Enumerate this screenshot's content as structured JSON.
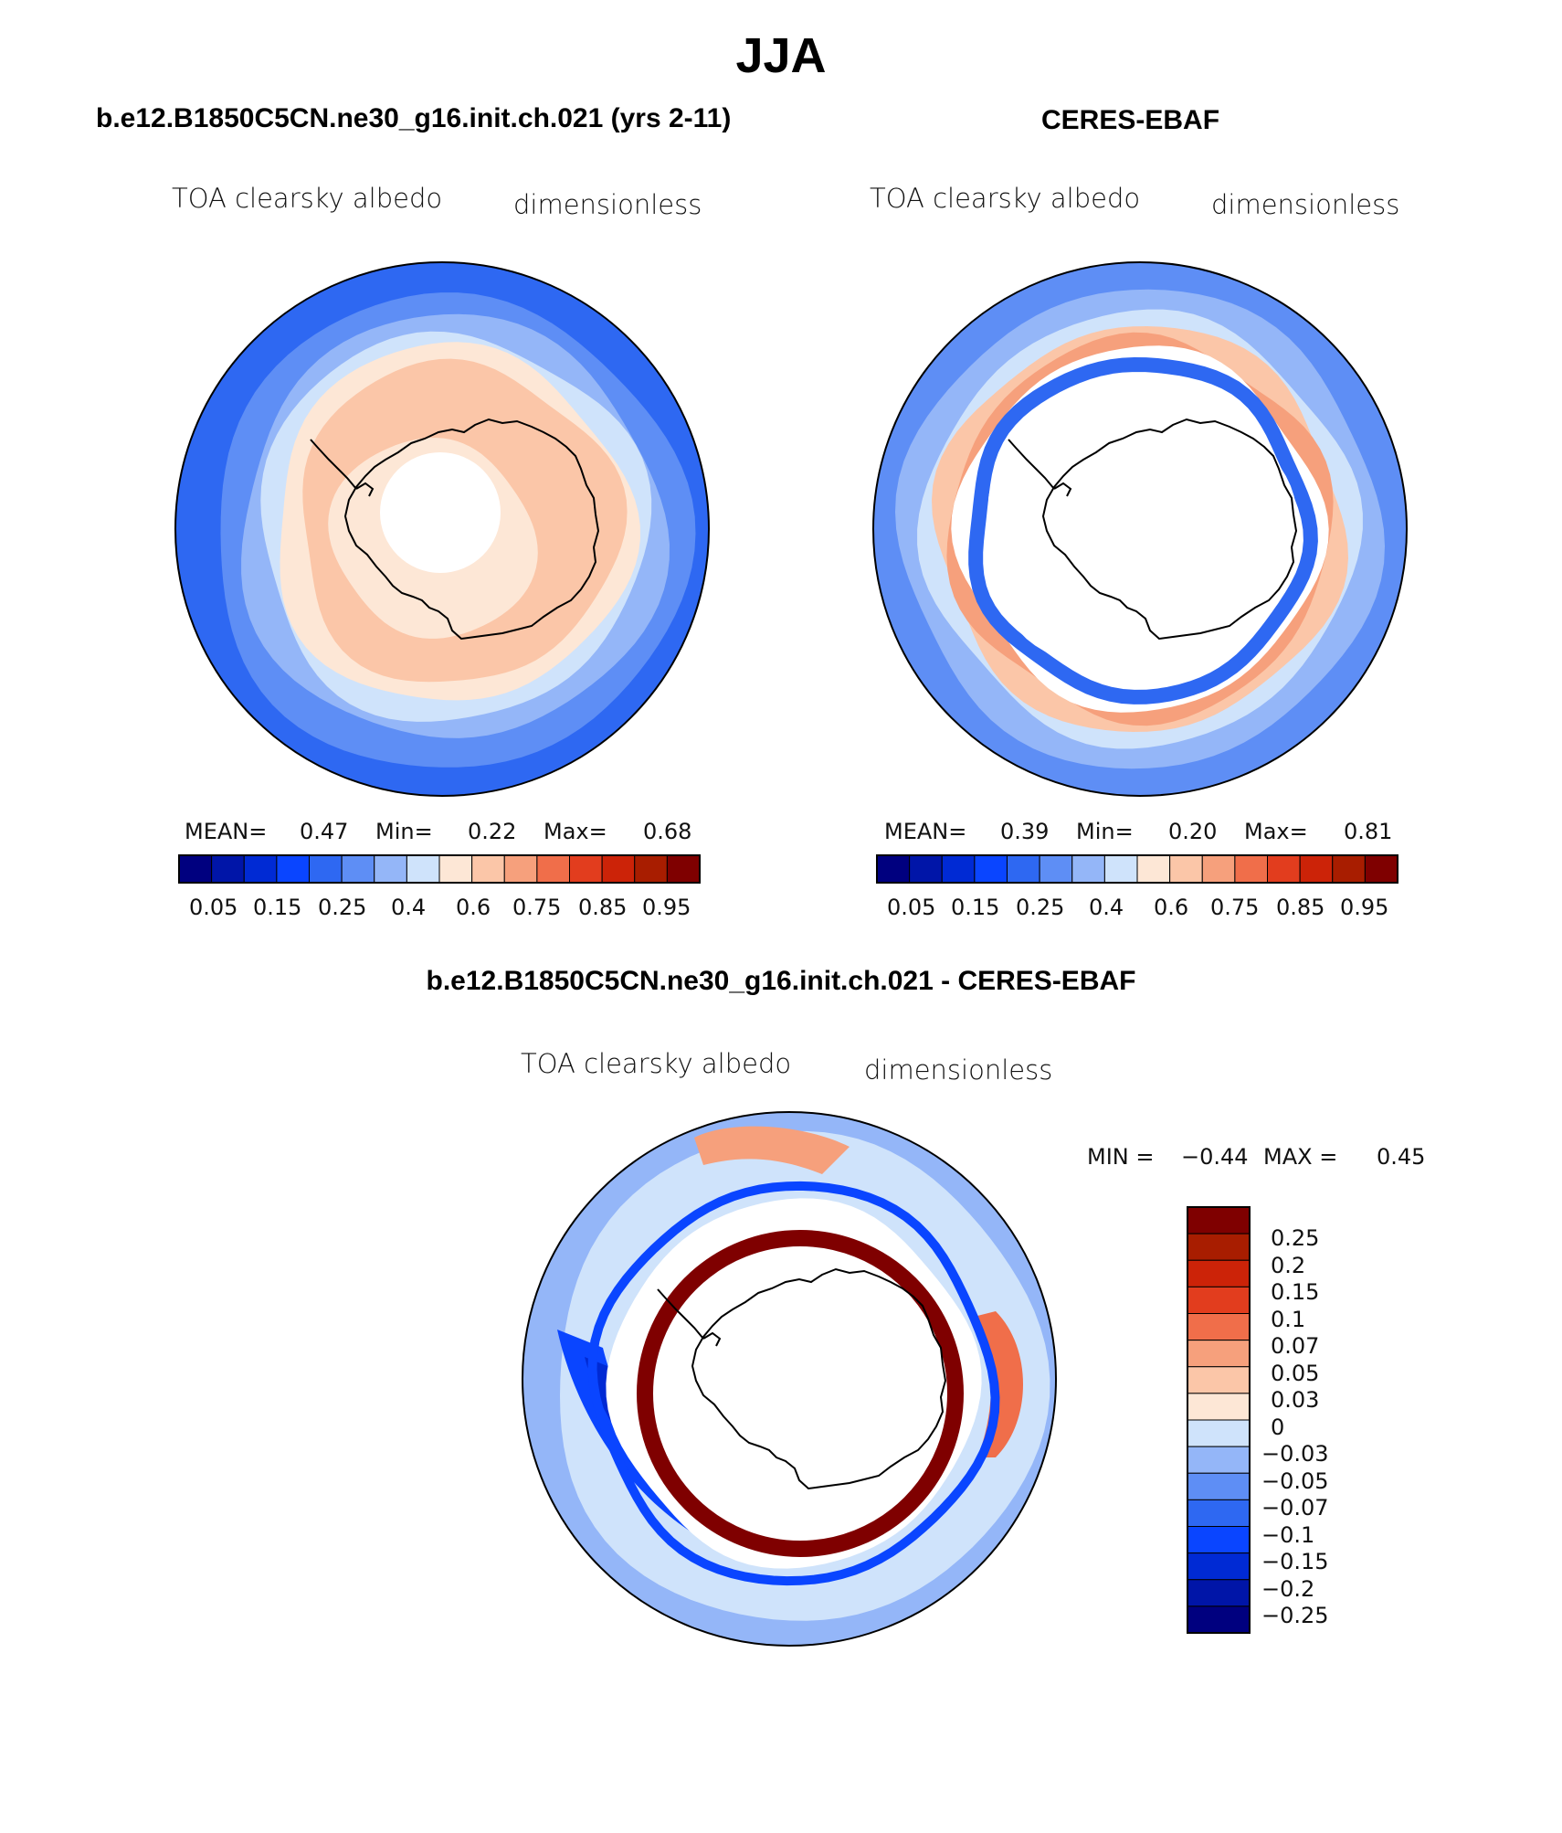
{
  "figure": {
    "title": "JJA"
  },
  "palette": [
    "#00007f",
    "#0015a8",
    "#002ad4",
    "#0a45ff",
    "#2e68f2",
    "#5e8ef5",
    "#94b6f8",
    "#cfe3fb",
    "#fde7d6",
    "#fbc6a8",
    "#f6a07c",
    "#f06e4a",
    "#e23d1e",
    "#cc2308",
    "#a81d00",
    "#7f0000"
  ],
  "coastline_color": "#000000",
  "chart_data": [
    {
      "type": "polar-contour-map",
      "id": "model",
      "title": "b.e12.B1850C5CN.ne30_g16.init.ch.021 (yrs 2-11)",
      "variable": "TOA clearsky albedo",
      "units": "dimensionless",
      "stats": {
        "mean_label": "MEAN=",
        "mean": "0.47",
        "min_label": "Min=",
        "min": "0.22",
        "max_label": "Max=",
        "max": "0.68"
      },
      "levels": [
        0.05,
        0.1,
        0.15,
        0.2,
        0.25,
        0.3,
        0.35,
        0.4,
        0.45,
        0.5,
        0.6,
        0.7,
        0.75,
        0.8,
        0.85,
        0.9,
        0.95
      ],
      "tick_labels": [
        "0.05",
        "0.15",
        "0.25",
        "0.4",
        "0.6",
        "0.75",
        "0.85",
        "0.95"
      ],
      "legend_position": "bottom"
    },
    {
      "type": "polar-contour-map",
      "id": "obs",
      "title": "CERES-EBAF",
      "variable": "TOA clearsky albedo",
      "units": "dimensionless",
      "stats": {
        "mean_label": "MEAN=",
        "mean": "0.39",
        "min_label": "Min=",
        "min": "0.20",
        "max_label": "Max=",
        "max": "0.81"
      },
      "levels": [
        0.05,
        0.1,
        0.15,
        0.2,
        0.25,
        0.3,
        0.35,
        0.4,
        0.45,
        0.5,
        0.6,
        0.7,
        0.75,
        0.8,
        0.85,
        0.9,
        0.95
      ],
      "tick_labels": [
        "0.05",
        "0.15",
        "0.25",
        "0.4",
        "0.6",
        "0.75",
        "0.85",
        "0.95"
      ],
      "legend_position": "bottom"
    },
    {
      "type": "polar-contour-map",
      "id": "diff",
      "title": "b.e12.B1850C5CN.ne30_g16.init.ch.021 - CERES-EBAF",
      "variable": "TOA clearsky albedo",
      "units": "dimensionless",
      "stats": {
        "min_label": "MIN =",
        "min": "−0.44",
        "max_label": "MAX =",
        "max": "0.45"
      },
      "levels": [
        0.25,
        0.2,
        0.15,
        0.1,
        0.07,
        0.05,
        0.03,
        0,
        -0.03,
        -0.05,
        -0.07,
        -0.1,
        -0.15,
        -0.2,
        -0.25
      ],
      "tick_labels": [
        "0.25",
        "0.2",
        "0.15",
        "0.1",
        "0.07",
        "0.05",
        "0.03",
        "0",
        "−0.03",
        "−0.05",
        "−0.07",
        "−0.1",
        "−0.15",
        "−0.2",
        "−0.25"
      ],
      "legend_position": "right"
    }
  ]
}
